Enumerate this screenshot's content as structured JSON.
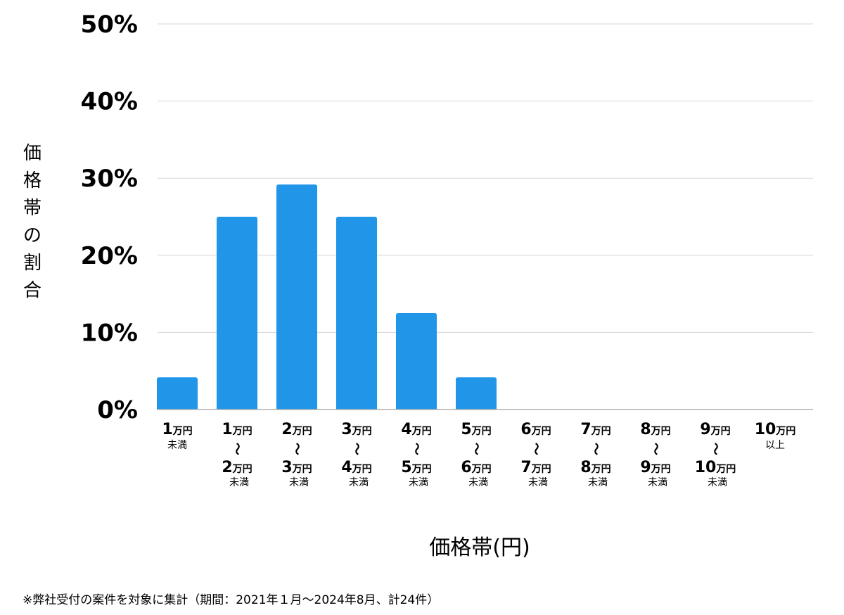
{
  "chart_data": {
    "type": "bar",
    "title": "",
    "xlabel": "価格帯(円)",
    "ylabel": "価格帯の割合",
    "ylim": [
      0,
      50
    ],
    "yticks": [
      "0%",
      "10%",
      "20%",
      "30%",
      "40%",
      "50%"
    ],
    "ytick_values": [
      0,
      10,
      20,
      30,
      40,
      50
    ],
    "grid": true,
    "bar_color": "#2196e8",
    "categories": [
      {
        "from": "1",
        "from_unit": "万円",
        "tilde": "",
        "to": "",
        "to_unit": "",
        "suffix": "未満"
      },
      {
        "from": "1",
        "from_unit": "万円",
        "tilde": "〜",
        "to": "2",
        "to_unit": "万円",
        "suffix": "未満"
      },
      {
        "from": "2",
        "from_unit": "万円",
        "tilde": "〜",
        "to": "3",
        "to_unit": "万円",
        "suffix": "未満"
      },
      {
        "from": "3",
        "from_unit": "万円",
        "tilde": "〜",
        "to": "4",
        "to_unit": "万円",
        "suffix": "未満"
      },
      {
        "from": "4",
        "from_unit": "万円",
        "tilde": "〜",
        "to": "5",
        "to_unit": "万円",
        "suffix": "未満"
      },
      {
        "from": "5",
        "from_unit": "万円",
        "tilde": "〜",
        "to": "6",
        "to_unit": "万円",
        "suffix": "未満"
      },
      {
        "from": "6",
        "from_unit": "万円",
        "tilde": "〜",
        "to": "7",
        "to_unit": "万円",
        "suffix": "未満"
      },
      {
        "from": "7",
        "from_unit": "万円",
        "tilde": "〜",
        "to": "8",
        "to_unit": "万円",
        "suffix": "未満"
      },
      {
        "from": "8",
        "from_unit": "万円",
        "tilde": "〜",
        "to": "9",
        "to_unit": "万円",
        "suffix": "未満"
      },
      {
        "from": "9",
        "from_unit": "万円",
        "tilde": "〜",
        "to": "10",
        "to_unit": "万円",
        "suffix": "未満"
      },
      {
        "from": "10",
        "from_unit": "万円",
        "tilde": "",
        "to": "",
        "to_unit": "",
        "suffix": "以上"
      }
    ],
    "values": [
      4.17,
      25.0,
      29.17,
      25.0,
      12.5,
      4.17,
      0,
      0,
      0,
      0,
      0
    ]
  },
  "footnote": "※弊社受付の案件を対象に集計（期間：2021年１月〜2024年8月、計24件）"
}
